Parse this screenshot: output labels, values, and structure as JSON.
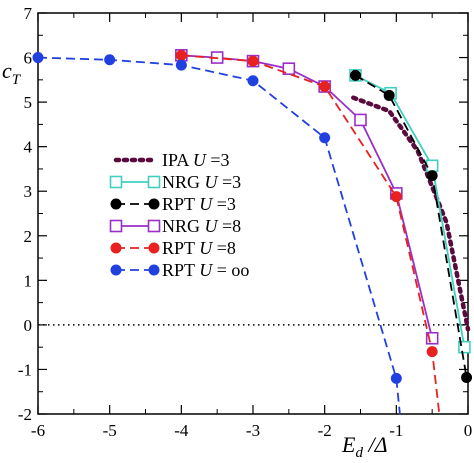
{
  "chart_data": {
    "type": "line",
    "xlabel_main": "E",
    "xlabel_sub": "d",
    "xlabel_tail": " /Δ",
    "ylabel_main": "c",
    "ylabel_sub": "T",
    "xlim": [
      -6,
      0
    ],
    "ylim": [
      -2,
      7
    ],
    "xticks": [
      -6,
      -5,
      -4,
      -3,
      -2,
      -1,
      0
    ],
    "yticks": [
      -2,
      -1,
      0,
      1,
      2,
      3,
      4,
      5,
      6,
      7
    ],
    "xtick_labels": [
      "-6",
      "-5",
      "-4",
      "-3",
      "-2",
      "-1",
      "0"
    ],
    "ytick_labels": [
      "-2",
      "-1",
      "0",
      "1",
      "2",
      "3",
      "4",
      "5",
      "6",
      "7"
    ],
    "reference_line": {
      "y": 0,
      "style": "dotted",
      "color": "#000000"
    },
    "legend_position": "center-left",
    "series": [
      {
        "name": "IPA",
        "U_label": "U",
        "U_value": "=3",
        "color": "#5a0a3c",
        "line": "dotted",
        "marker": "none",
        "x": [
          -1.6,
          -1.1,
          -0.7,
          -0.3,
          0.0
        ],
        "y": [
          5.1,
          4.8,
          3.9,
          2.3,
          -0.1
        ]
      },
      {
        "name": "NRG",
        "U_label": "U",
        "U_value": "=3",
        "color": "#40d0c0",
        "line": "solid",
        "marker": "open-square",
        "x": [
          -1.57,
          -1.08,
          -0.5,
          -0.05
        ],
        "y": [
          5.6,
          5.2,
          3.57,
          -0.5
        ]
      },
      {
        "name": "RPT",
        "U_label": "U",
        "U_value": "=3",
        "color": "#000000",
        "line": "dashed",
        "marker": "filled-circle",
        "x": [
          -1.57,
          -1.1,
          -0.5,
          -0.02
        ],
        "y": [
          5.6,
          5.15,
          3.35,
          -1.18
        ]
      },
      {
        "name": "NRG",
        "U_label": "U",
        "U_value": "=8",
        "color": "#9a2fc8",
        "line": "solid",
        "marker": "open-square",
        "x": [
          -4.0,
          -3.5,
          -3.0,
          -2.5,
          -2.0,
          -1.5,
          -1.0,
          -0.5
        ],
        "y": [
          6.05,
          6.0,
          5.92,
          5.75,
          5.35,
          4.6,
          2.95,
          -0.3
        ]
      },
      {
        "name": "RPT",
        "U_label": "U",
        "U_value": "=8",
        "color": "#e82020",
        "line": "dashed",
        "marker": "filled-circle",
        "x": [
          -4.0,
          -3.0,
          -2.0,
          -1.0,
          -0.5,
          -0.4
        ],
        "y": [
          6.05,
          5.92,
          5.35,
          2.88,
          -0.6,
          -2.0
        ]
      },
      {
        "name": "RPT",
        "U_label": "U",
        "U_value": "= oo",
        "color": "#2040e0",
        "line": "dashed",
        "marker": "filled-circle",
        "x": [
          -6.0,
          -5.0,
          -4.0,
          -3.0,
          -2.0,
          -1.0,
          -0.95
        ],
        "y": [
          6.0,
          5.95,
          5.83,
          5.48,
          4.2,
          -1.2,
          -2.0
        ]
      }
    ],
    "markers_shown": [
      [
        false,
        false,
        false,
        false,
        false
      ],
      [
        true,
        true,
        true,
        true
      ],
      [
        true,
        true,
        true,
        true
      ],
      [
        true,
        true,
        true,
        true,
        true,
        true,
        true,
        true
      ],
      [
        true,
        true,
        true,
        true,
        true,
        false
      ],
      [
        true,
        true,
        true,
        true,
        true,
        true,
        false
      ]
    ]
  }
}
